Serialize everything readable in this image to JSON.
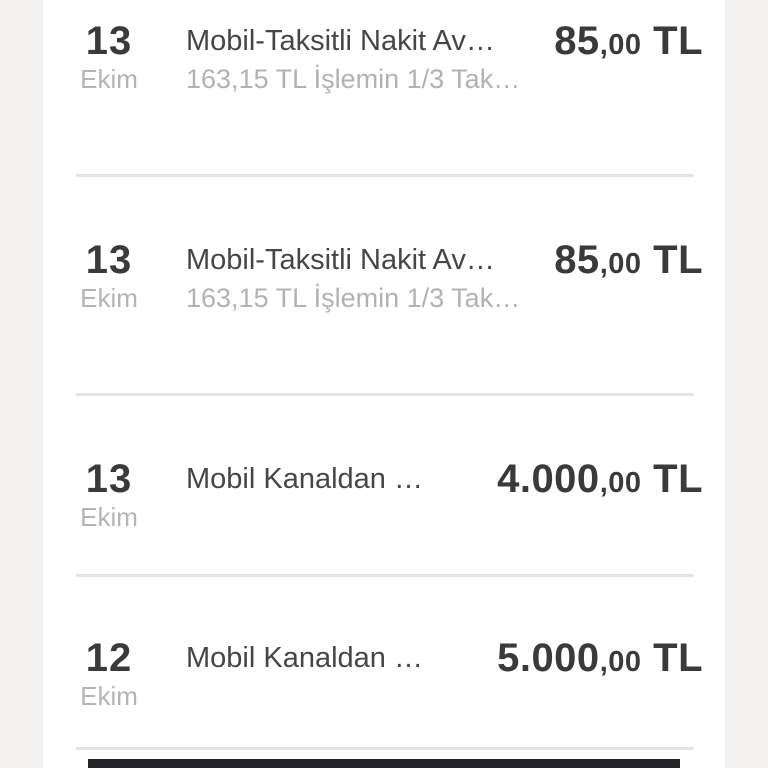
{
  "list": {
    "rows": [
      {
        "day": "13",
        "month": "Ekim",
        "title": "Mobil-Taksitli Nakit Av…",
        "subtitle": "163,15 TL İşlemin 1/3 Tak…",
        "amount_int": "85",
        "amount_dec": ",00",
        "currency": " TL"
      },
      {
        "day": "13",
        "month": "Ekim",
        "title": "Mobil-Taksitli Nakit Av…",
        "subtitle": "163,15 TL İşlemin 1/3 Tak…",
        "amount_int": "85",
        "amount_dec": ",00",
        "currency": " TL"
      },
      {
        "day": "13",
        "month": "Ekim",
        "title": "Mobil Kanaldan …",
        "subtitle": "",
        "amount_int": "4.000",
        "amount_dec": ",00",
        "currency": " TL"
      },
      {
        "day": "12",
        "month": "Ekim",
        "title": "Mobil Kanaldan …",
        "subtitle": "",
        "amount_int": "5.000",
        "amount_dec": ",00",
        "currency": " TL"
      }
    ]
  },
  "colors": {
    "background": "#ffffff",
    "gutter": "#f3f1ef",
    "primary_text": "#3a3a3a",
    "title_text": "#474645",
    "muted_text": "#b3b2b1",
    "divider": "#e6e4e2",
    "bottom_bar": "#26242b"
  }
}
